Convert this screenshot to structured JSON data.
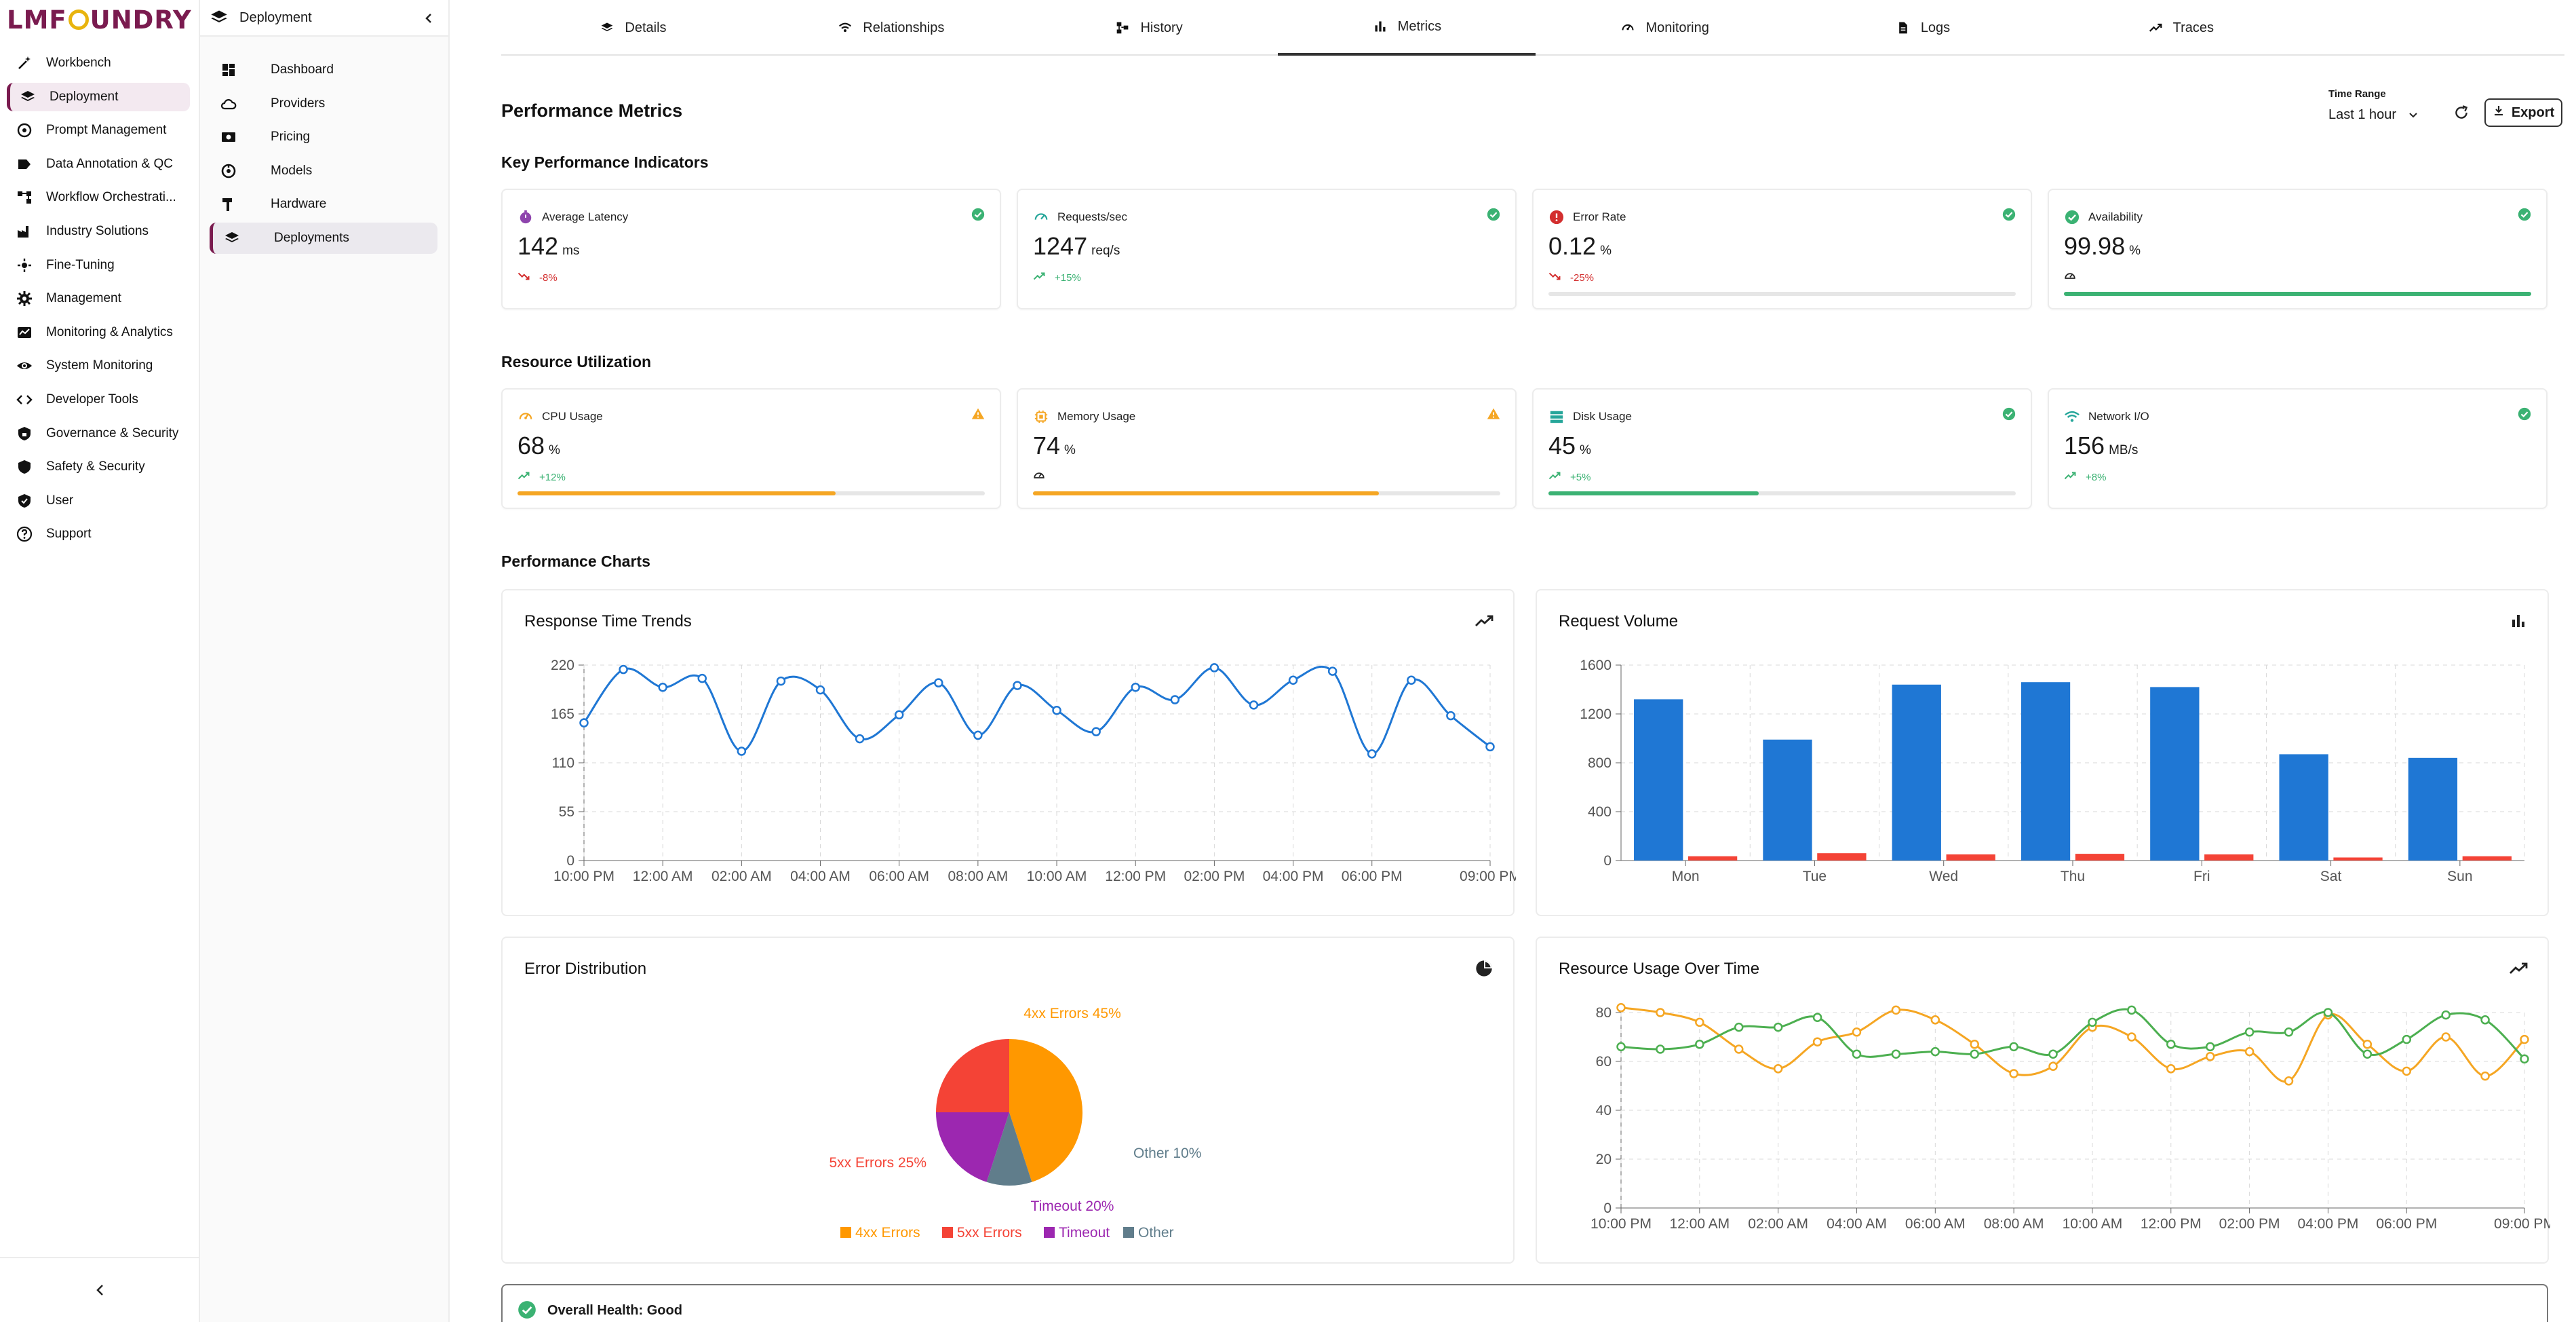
{
  "brand": {
    "logo_left": "LMF",
    "logo_right": "UNDRY"
  },
  "nav_main": [
    {
      "label": "Workbench",
      "icon": "wand-icon"
    },
    {
      "label": "Deployment",
      "icon": "layers-icon",
      "active": true
    },
    {
      "label": "Prompt Management",
      "icon": "prompt-icon"
    },
    {
      "label": "Data Annotation & QC",
      "icon": "tag-icon"
    },
    {
      "label": "Workflow Orchestrati...",
      "icon": "workflow-icon"
    },
    {
      "label": "Industry Solutions",
      "icon": "factory-icon"
    },
    {
      "label": "Fine-Tuning",
      "icon": "tune-icon"
    },
    {
      "label": "Management",
      "icon": "gear-icon"
    },
    {
      "label": "Monitoring & Analytics",
      "icon": "analytics-icon"
    },
    {
      "label": "System Monitoring",
      "icon": "eye-icon"
    },
    {
      "label": "Developer Tools",
      "icon": "code-icon"
    },
    {
      "label": "Governance & Security",
      "icon": "shield-lock-icon"
    },
    {
      "label": "Safety & Security",
      "icon": "shield-icon"
    },
    {
      "label": "User",
      "icon": "user-shield-icon"
    },
    {
      "label": "Support",
      "icon": "help-icon"
    }
  ],
  "subnav": {
    "title": "Deployment",
    "items": [
      {
        "label": "Dashboard",
        "icon": "dashboard-icon"
      },
      {
        "label": "Providers",
        "icon": "cloud-icon"
      },
      {
        "label": "Pricing",
        "icon": "money-icon"
      },
      {
        "label": "Models",
        "icon": "model-icon"
      },
      {
        "label": "Hardware",
        "icon": "hammer-icon"
      },
      {
        "label": "Deployments",
        "icon": "layers-icon",
        "active": true
      }
    ]
  },
  "tabs": [
    {
      "label": "Details",
      "icon": "layers-icon"
    },
    {
      "label": "Relationships",
      "icon": "relationships-icon"
    },
    {
      "label": "History",
      "icon": "history-icon"
    },
    {
      "label": "Metrics",
      "icon": "bar-chart-icon",
      "active": true
    },
    {
      "label": "Monitoring",
      "icon": "gauge-icon"
    },
    {
      "label": "Logs",
      "icon": "file-icon"
    },
    {
      "label": "Traces",
      "icon": "trend-icon"
    }
  ],
  "header": {
    "title": "Performance Metrics",
    "time_range_label": "Time Range",
    "time_range_value": "Last 1 hour",
    "export_label": "Export"
  },
  "sections": {
    "kpi": "Key Performance Indicators",
    "resources": "Resource Utilization",
    "charts": "Performance Charts"
  },
  "kpis": [
    {
      "title": "Average Latency",
      "value": "142",
      "unit": "ms",
      "change": "-8%",
      "trend": "down",
      "status": "ok",
      "icon": "timer-icon",
      "icon_color": "#8e44ad"
    },
    {
      "title": "Requests/sec",
      "value": "1247",
      "unit": "req/s",
      "change": "+15%",
      "trend": "up",
      "status": "ok",
      "icon": "speed-icon",
      "icon_color": "#26a69a"
    },
    {
      "title": "Error Rate",
      "value": "0.12",
      "unit": "%",
      "change": "-25%",
      "trend": "down",
      "status": "ok",
      "icon": "error-icon",
      "icon_color": "#d32f2f",
      "bar": 0.0
    },
    {
      "title": "Availability",
      "value": "99.98",
      "unit": "%",
      "change": "",
      "trend": "flat",
      "status": "ok",
      "icon": "check-circle-icon",
      "icon_color": "#3bb273",
      "bar": 0.9998,
      "bar_color": "#3bb273"
    }
  ],
  "resources": [
    {
      "title": "CPU Usage",
      "value": "68",
      "unit": "%",
      "change": "+12%",
      "trend": "up",
      "status": "warn",
      "icon": "gauge-icon",
      "icon_color": "#f5a623",
      "bar": 0.68,
      "bar_color": "#f5a623"
    },
    {
      "title": "Memory Usage",
      "value": "74",
      "unit": "%",
      "change": "",
      "trend": "flat",
      "status": "warn",
      "icon": "memory-icon",
      "icon_color": "#f5a623",
      "bar": 0.74,
      "bar_color": "#f5a623"
    },
    {
      "title": "Disk Usage",
      "value": "45",
      "unit": "%",
      "change": "+5%",
      "trend": "up",
      "status": "ok",
      "icon": "storage-icon",
      "icon_color": "#26a69a",
      "bar": 0.45,
      "bar_color": "#3bb273"
    },
    {
      "title": "Network I/O",
      "value": "156",
      "unit": "MB/s",
      "change": "+8%",
      "trend": "up",
      "status": "ok",
      "icon": "wifi-icon",
      "icon_color": "#26a69a"
    }
  ],
  "colors": {
    "ok": "#3bb273",
    "warn": "#f5a623",
    "down": "#d32f2f",
    "up": "#3bb273",
    "accent": "#7a1b4f",
    "blue": "#1f77d4",
    "red": "#f44336",
    "orange": "#ff9800",
    "purple": "#9c27b0",
    "slate": "#607d8b",
    "green": "#4caf50"
  },
  "health": {
    "label": "Overall Health: Good"
  },
  "chart_data": [
    {
      "title": "Response Time Trends",
      "type": "line",
      "icon": "trend-icon",
      "x": [
        "10:00 PM",
        "11:00 PM",
        "12:00 AM",
        "01:00 AM",
        "02:00 AM",
        "03:00 AM",
        "04:00 AM",
        "05:00 AM",
        "06:00 AM",
        "07:00 AM",
        "08:00 AM",
        "09:00 AM",
        "10:00 AM",
        "11:00 AM",
        "12:00 PM",
        "01:00 PM",
        "02:00 PM",
        "03:00 PM",
        "04:00 PM",
        "05:00 PM",
        "06:00 PM",
        "07:00 PM",
        "08:00 PM",
        "09:00 PM"
      ],
      "xticks": [
        "10:00 PM",
        "12:00 AM",
        "02:00 AM",
        "04:00 AM",
        "06:00 AM",
        "08:00 AM",
        "10:00 AM",
        "12:00 PM",
        "02:00 PM",
        "04:00 PM",
        "06:00 PM",
        "09:00 PM"
      ],
      "series": [
        {
          "values": [
            155,
            215,
            195,
            205,
            123,
            202,
            192,
            137,
            164,
            200,
            141,
            197,
            169,
            145,
            195,
            181,
            217,
            175,
            203,
            213,
            120,
            203,
            163,
            128
          ]
        }
      ],
      "ylim": [
        0,
        220
      ],
      "yticks": [
        0,
        55,
        110,
        165,
        220
      ],
      "color": "#1f77d4",
      "grid": true
    },
    {
      "title": "Request Volume",
      "type": "bar",
      "icon": "bar-chart-icon",
      "categories": [
        "Mon",
        "Tue",
        "Wed",
        "Thu",
        "Fri",
        "Sat",
        "Sun"
      ],
      "series": [
        {
          "values": [
            1320,
            990,
            1440,
            1460,
            1420,
            870,
            840
          ],
          "color": "#1f77d4"
        },
        {
          "values": [
            35,
            60,
            50,
            55,
            50,
            25,
            35
          ],
          "color": "#f44336"
        }
      ],
      "ylim": [
        0,
        1600
      ],
      "yticks": [
        0,
        400,
        800,
        1200,
        1600
      ],
      "grid": true
    },
    {
      "title": "Error Distribution",
      "type": "pie",
      "icon": "pie-icon",
      "slices": [
        {
          "name": "4xx Errors",
          "value": 45,
          "color": "#ff9800",
          "label": "4xx Errors 45%"
        },
        {
          "name": "Other",
          "value": 10,
          "color": "#607d8b",
          "label": "Other 10%"
        },
        {
          "name": "Timeout",
          "value": 20,
          "color": "#9c27b0",
          "label": "Timeout 20%"
        },
        {
          "name": "5xx Errors",
          "value": 25,
          "color": "#f44336",
          "label": "5xx Errors 25%"
        }
      ],
      "legend": [
        "4xx Errors",
        "5xx Errors",
        "Timeout",
        "Other"
      ]
    },
    {
      "title": "Resource Usage Over Time",
      "type": "line",
      "icon": "trend-icon",
      "x": [
        "10:00 PM",
        "11:00 PM",
        "12:00 AM",
        "01:00 AM",
        "02:00 AM",
        "03:00 AM",
        "04:00 AM",
        "05:00 AM",
        "06:00 AM",
        "07:00 AM",
        "08:00 AM",
        "09:00 AM",
        "10:00 AM",
        "11:00 AM",
        "12:00 PM",
        "01:00 PM",
        "02:00 PM",
        "03:00 PM",
        "04:00 PM",
        "05:00 PM",
        "06:00 PM",
        "07:00 PM",
        "08:00 PM",
        "09:00 PM"
      ],
      "xticks": [
        "10:00 PM",
        "12:00 AM",
        "02:00 AM",
        "04:00 AM",
        "06:00 AM",
        "08:00 AM",
        "10:00 AM",
        "12:00 PM",
        "02:00 PM",
        "04:00 PM",
        "06:00 PM",
        "09:00 PM"
      ],
      "series": [
        {
          "values": [
            82,
            80,
            76,
            65,
            57,
            68,
            72,
            81,
            77,
            67,
            55,
            58,
            74,
            70,
            57,
            62,
            64,
            52,
            79,
            67,
            56,
            70,
            54,
            69
          ],
          "color": "#f5a623"
        },
        {
          "values": [
            66,
            65,
            67,
            74,
            74,
            78,
            63,
            63,
            64,
            63,
            66,
            63,
            76,
            81,
            67,
            66,
            72,
            72,
            80,
            63,
            69,
            79,
            77,
            61
          ],
          "color": "#4caf50"
        }
      ],
      "ylim": [
        0,
        80
      ],
      "yticks": [
        0,
        20,
        40,
        60,
        80
      ],
      "grid": true
    }
  ]
}
